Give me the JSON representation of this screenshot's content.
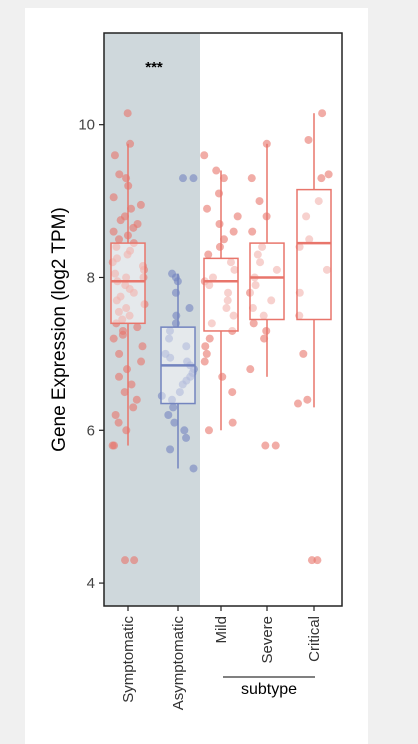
{
  "chart_data": {
    "type": "box",
    "ylabel": "Gene Expression (log2 TPM)",
    "ylim": [
      3.7,
      11.2
    ],
    "yticks": [
      4,
      6,
      8,
      10
    ],
    "categories": [
      "Symptomatic",
      "Asymptomatic",
      "Mild",
      "Severe",
      "Critical"
    ],
    "group_label": "subtype",
    "grouped_categories": [
      "Mild",
      "Severe",
      "Critical"
    ],
    "shaded_categories": [
      "Symptomatic",
      "Asymptomatic"
    ],
    "annotation": {
      "text": "***",
      "category": "Symptomatic"
    },
    "colors": {
      "symptomatic": "#e8756b",
      "asymptomatic": "#7384bf",
      "shade": "#cfd8dc",
      "axis": "#222222"
    },
    "boxes": [
      {
        "category": "Symptomatic",
        "min": 5.8,
        "q1": 7.4,
        "median": 7.95,
        "q3": 8.45,
        "max": 9.75,
        "color": "#e8756b"
      },
      {
        "category": "Asymptomatic",
        "min": 5.5,
        "q1": 6.35,
        "median": 6.85,
        "q3": 7.35,
        "max": 8.05,
        "color": "#7384bf"
      },
      {
        "category": "Mild",
        "min": 6.0,
        "q1": 7.3,
        "median": 7.95,
        "q3": 8.25,
        "max": 9.4,
        "color": "#e8756b"
      },
      {
        "category": "Severe",
        "min": 6.7,
        "q1": 7.45,
        "median": 8.0,
        "q3": 8.45,
        "max": 9.75,
        "color": "#e8756b"
      },
      {
        "category": "Critical",
        "min": 6.3,
        "q1": 7.45,
        "median": 8.45,
        "q3": 9.15,
        "max": 10.15,
        "color": "#e8756b"
      }
    ],
    "points": [
      {
        "category": "Symptomatic",
        "values": [
          10.15,
          9.75,
          9.6,
          9.35,
          9.3,
          9.2,
          9.05,
          8.95,
          8.9,
          8.8,
          8.75,
          8.7,
          8.65,
          8.6,
          8.55,
          8.5,
          8.45,
          8.4,
          8.35,
          8.3,
          8.25,
          8.2,
          8.15,
          8.1,
          8.05,
          8.0,
          8.0,
          7.95,
          7.9,
          7.85,
          7.8,
          7.75,
          7.7,
          7.65,
          7.6,
          7.55,
          7.5,
          7.45,
          7.4,
          7.35,
          7.3,
          7.25,
          7.2,
          7.1,
          7.0,
          6.9,
          6.8,
          6.7,
          6.6,
          6.5,
          6.4,
          6.3,
          6.2,
          6.1,
          6.0,
          5.8,
          5.8,
          4.3,
          4.3
        ]
      },
      {
        "category": "Asymptomatic",
        "values": [
          9.3,
          9.3,
          8.05,
          8.0,
          7.95,
          7.8,
          7.6,
          7.5,
          7.4,
          7.3,
          7.2,
          7.1,
          7.0,
          6.95,
          6.9,
          6.85,
          6.8,
          6.75,
          6.7,
          6.65,
          6.6,
          6.5,
          6.45,
          6.4,
          6.3,
          6.2,
          6.1,
          6.0,
          5.9,
          5.75,
          5.5
        ]
      },
      {
        "category": "Mild",
        "values": [
          9.6,
          9.4,
          9.3,
          9.1,
          8.9,
          8.8,
          8.7,
          8.6,
          8.5,
          8.4,
          8.3,
          8.2,
          8.1,
          8.0,
          7.95,
          7.9,
          7.8,
          7.7,
          7.6,
          7.5,
          7.4,
          7.3,
          7.2,
          7.1,
          7.0,
          6.9,
          6.7,
          6.5,
          6.1,
          6.0
        ]
      },
      {
        "category": "Severe",
        "values": [
          9.75,
          9.3,
          9.0,
          8.8,
          8.6,
          8.4,
          8.3,
          8.2,
          8.1,
          8.0,
          7.9,
          7.8,
          7.7,
          7.6,
          7.5,
          7.4,
          7.3,
          7.2,
          6.8,
          5.8,
          5.8
        ]
      },
      {
        "category": "Critical",
        "values": [
          10.15,
          9.8,
          9.35,
          9.3,
          9.0,
          8.8,
          8.5,
          8.4,
          8.1,
          7.8,
          7.5,
          7.0,
          6.4,
          6.35,
          4.3,
          4.3
        ]
      }
    ]
  }
}
